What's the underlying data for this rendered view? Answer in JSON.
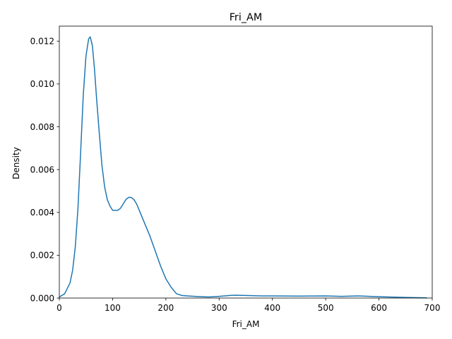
{
  "chart_data": {
    "type": "line",
    "title": "Fri_AM",
    "xlabel": "Fri_AM",
    "ylabel": "Density",
    "xlim": [
      0,
      700
    ],
    "ylim": [
      0,
      0.0127
    ],
    "grid": false,
    "legend": "none",
    "xticks": [
      0,
      100,
      200,
      300,
      400,
      500,
      600,
      700
    ],
    "xtick_labels": [
      "0",
      "100",
      "200",
      "300",
      "400",
      "500",
      "600",
      "700"
    ],
    "yticks": [
      0,
      0.002,
      0.004,
      0.006,
      0.008,
      0.01,
      0.012
    ],
    "ytick_labels": [
      "0.000",
      "0.002",
      "0.004",
      "0.006",
      "0.008",
      "0.010",
      "0.012"
    ],
    "series": [
      {
        "color": "#1f77b4",
        "x": [
          0,
          10,
          20,
          25,
          30,
          35,
          40,
          45,
          50,
          55,
          58,
          62,
          66,
          70,
          75,
          80,
          85,
          90,
          95,
          100,
          105,
          110,
          115,
          120,
          125,
          130,
          135,
          140,
          145,
          150,
          160,
          170,
          180,
          190,
          200,
          210,
          220,
          230,
          240,
          260,
          280,
          300,
          320,
          330,
          350,
          380,
          400,
          450,
          500,
          530,
          560,
          600,
          650,
          690
        ],
        "y": [
          5e-05,
          0.0002,
          0.0007,
          0.0013,
          0.0024,
          0.0042,
          0.0068,
          0.0095,
          0.0113,
          0.0121,
          0.0122,
          0.0118,
          0.0107,
          0.0093,
          0.0077,
          0.0062,
          0.0052,
          0.0046,
          0.0043,
          0.0041,
          0.0041,
          0.0041,
          0.0042,
          0.0044,
          0.0046,
          0.0047,
          0.0047,
          0.0046,
          0.0044,
          0.0041,
          0.0035,
          0.0029,
          0.0022,
          0.0015,
          0.0009,
          0.0005,
          0.0002,
          0.00012,
          0.0001,
          7e-05,
          5e-05,
          8e-05,
          0.00012,
          0.00013,
          0.00012,
          0.0001,
          0.0001,
          9e-05,
          0.0001,
          8e-05,
          0.0001,
          6e-05,
          3e-05,
          1e-05
        ]
      }
    ]
  }
}
